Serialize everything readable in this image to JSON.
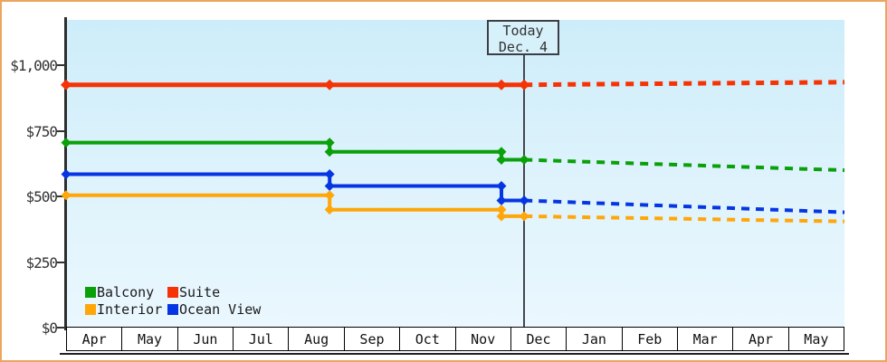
{
  "window": {
    "border_color": "#eda55e",
    "background": "#ffffff"
  },
  "chart_data": {
    "type": "line",
    "title": "",
    "description": "Cruise cabin price history (solid) and forecast after today (dashed), stepped line chart",
    "today_annotation": {
      "line1": "Today",
      "line2": "Dec. 4",
      "x_month": 8.24
    },
    "x_axis": {
      "labels": [
        "Apr",
        "May",
        "Jun",
        "Jul",
        "Aug",
        "Sep",
        "Oct",
        "Nov",
        "Dec",
        "Jan",
        "Feb",
        "Mar",
        "Apr",
        "May"
      ],
      "range_months": [
        0,
        14
      ]
    },
    "y_axis": {
      "tick_values": [
        0,
        250,
        500,
        750,
        1000
      ],
      "tick_labels": [
        "$0",
        "$250",
        "$500",
        "$750",
        "$1,000"
      ],
      "range": [
        0,
        1170
      ],
      "unit": "USD"
    },
    "series": [
      {
        "name": "Suite",
        "color": "#f63305",
        "solid": [
          [
            0,
            925
          ],
          [
            4.74,
            925
          ],
          [
            7.83,
            925
          ],
          [
            8.24,
            925
          ]
        ],
        "dashed": [
          [
            8.24,
            925
          ],
          [
            14,
            935
          ]
        ]
      },
      {
        "name": "Balcony",
        "color": "#0aa00a",
        "solid": [
          [
            0,
            705
          ],
          [
            4.74,
            705
          ],
          [
            4.74,
            670
          ],
          [
            7.83,
            670
          ],
          [
            7.83,
            640
          ],
          [
            8.24,
            640
          ]
        ],
        "dashed": [
          [
            8.24,
            640
          ],
          [
            14,
            600
          ]
        ]
      },
      {
        "name": "Ocean View",
        "color": "#0636e3",
        "solid": [
          [
            0,
            585
          ],
          [
            4.74,
            585
          ],
          [
            4.74,
            540
          ],
          [
            7.83,
            540
          ],
          [
            7.83,
            485
          ],
          [
            8.24,
            485
          ]
        ],
        "dashed": [
          [
            8.24,
            485
          ],
          [
            14,
            440
          ]
        ]
      },
      {
        "name": "Interior",
        "color": "#ffa608",
        "solid": [
          [
            0,
            505
          ],
          [
            4.74,
            505
          ],
          [
            4.74,
            450
          ],
          [
            7.83,
            450
          ],
          [
            7.83,
            425
          ],
          [
            8.24,
            425
          ]
        ],
        "dashed": [
          [
            8.24,
            425
          ],
          [
            14,
            405
          ]
        ]
      }
    ],
    "legend": {
      "position": "bottom-left",
      "rows": [
        [
          "Balcony",
          "Suite"
        ],
        [
          "Interior",
          "Ocean View"
        ]
      ]
    },
    "plot_background": {
      "top": "#cdedfa",
      "bottom": "#eaf7fe"
    }
  }
}
